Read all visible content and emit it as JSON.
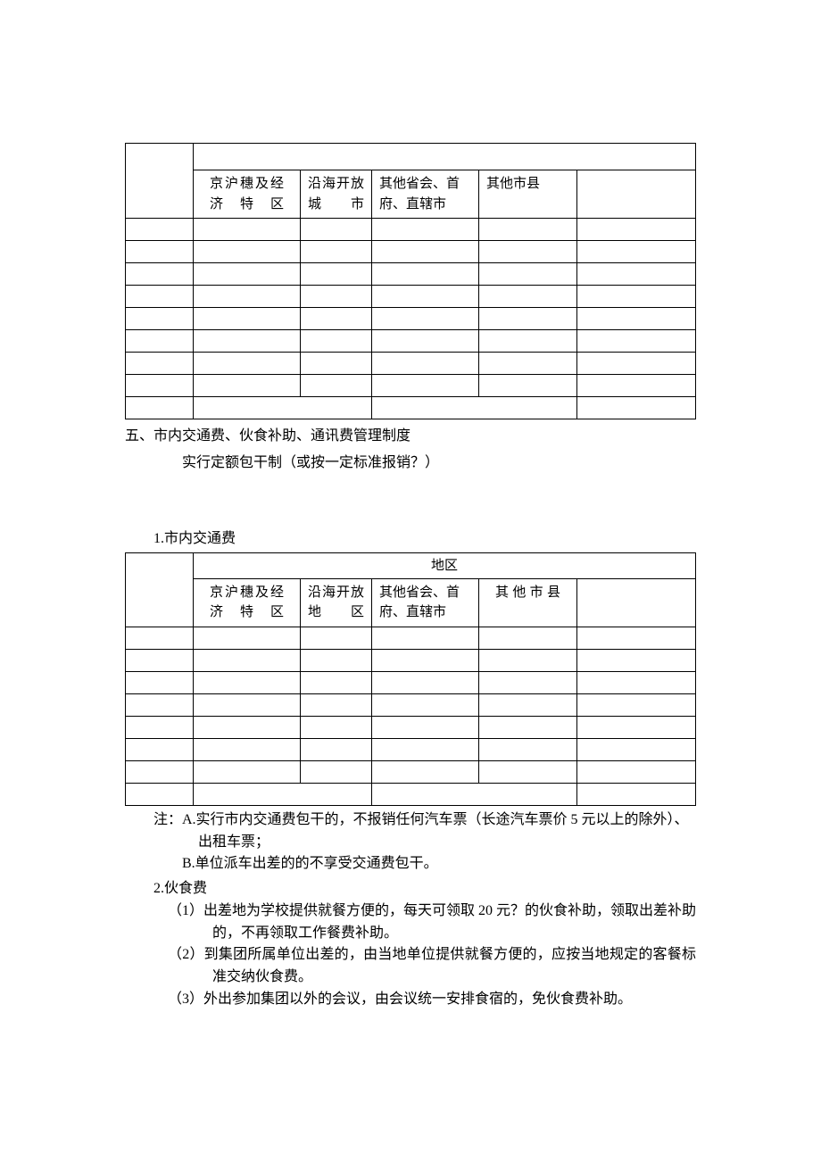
{
  "table1": {
    "headers": [
      "京沪穗及经济特区",
      "沿海开放城市",
      "其他省会、首府、直辖市",
      "其他市县"
    ],
    "blank_rows": 9
  },
  "section_five": {
    "title": "五、市内交通费、伙食补助、通讯费管理制度",
    "subtitle": "实行定额包干制（或按一定标准报销？）"
  },
  "table2": {
    "caption": "1.市内交通费",
    "region_label": "地区",
    "headers": [
      "京沪穗及经济特区",
      "沿海开放地区",
      "其他省会、首府、直辖市",
      "其他市县"
    ],
    "blank_rows": 8
  },
  "notes": {
    "a": "注：A.实行市内交通费包干的，不报销任何汽车票（长途汽车票价 5 元以上的除外）、出租车票；",
    "b": "B.单位派车出差的的不享受交通费包干。"
  },
  "food": {
    "heading": "2.伙食费",
    "items": [
      "（1）出差地为学校提供就餐方便的，每天可领取 20 元？的伙食补助，领取出差补助的，不再领取工作餐费补助。",
      "（2）到集团所属单位出差的，由当地单位提供就餐方便的，应按当地规定的客餐标准交纳伙食费。",
      "（3）外出参加集团以外的会议，由会议统一安排食宿的，免伙食费补助。"
    ]
  }
}
